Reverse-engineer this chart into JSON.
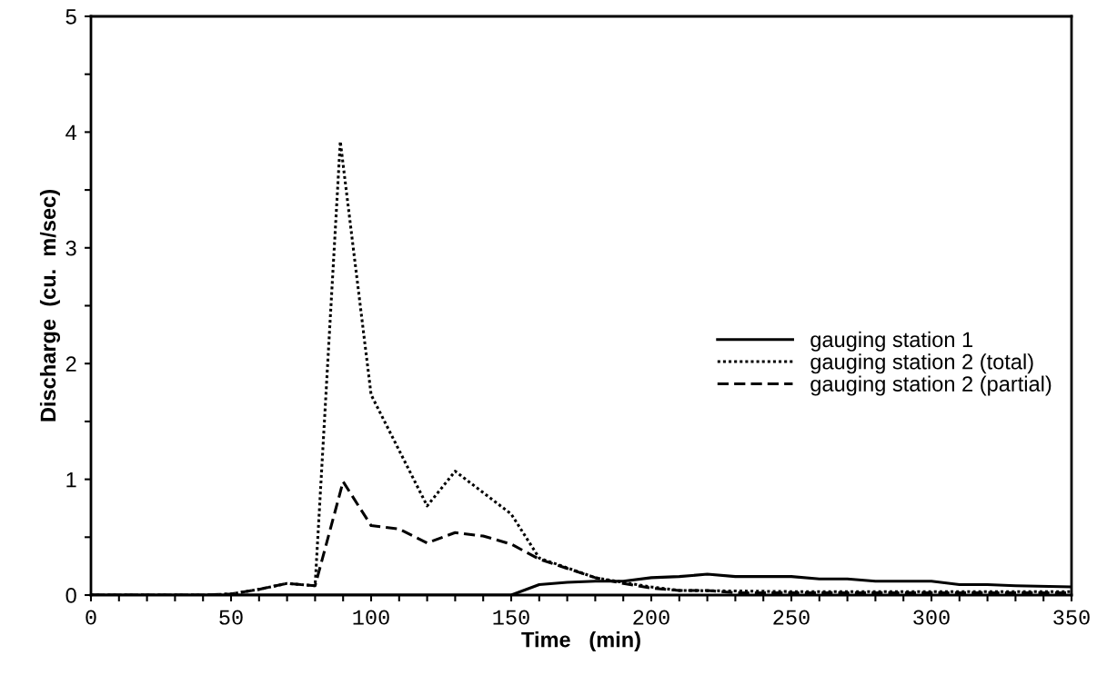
{
  "chart_data": {
    "type": "line",
    "xlabel": "Time   (min)",
    "ylabel": "Discharge  (cu.  m/sec)",
    "xlim": [
      0,
      350
    ],
    "ylim": [
      0,
      5
    ],
    "xticks": [
      0,
      {
        "value": 10,
        "label": null
      },
      {
        "value": 20,
        "label": null
      },
      {
        "value": 30,
        "label": null
      },
      {
        "value": 40,
        "label": null
      },
      50,
      {
        "value": 60,
        "label": null
      },
      {
        "value": 70,
        "label": null
      },
      {
        "value": 80,
        "label": null
      },
      {
        "value": 90,
        "label": null
      },
      100,
      {
        "value": 110,
        "label": null
      },
      {
        "value": 120,
        "label": null
      },
      {
        "value": 130,
        "label": null
      },
      {
        "value": 140,
        "label": null
      },
      150,
      {
        "value": 160,
        "label": null
      },
      {
        "value": 170,
        "label": null
      },
      {
        "value": 180,
        "label": null
      },
      {
        "value": 190,
        "label": null
      },
      200,
      {
        "value": 210,
        "label": null
      },
      {
        "value": 220,
        "label": null
      },
      {
        "value": 230,
        "label": null
      },
      {
        "value": 240,
        "label": null
      },
      250,
      {
        "value": 260,
        "label": null
      },
      {
        "value": 270,
        "label": null
      },
      {
        "value": 280,
        "label": null
      },
      {
        "value": 290,
        "label": null
      },
      300,
      {
        "value": 310,
        "label": null
      },
      {
        "value": 320,
        "label": null
      },
      {
        "value": 330,
        "label": null
      },
      {
        "value": 340,
        "label": null
      },
      350
    ],
    "yticks": [
      0,
      {
        "value": 0.5,
        "label": null
      },
      1,
      {
        "value": 1.5,
        "label": null
      },
      2,
      {
        "value": 2.5,
        "label": null
      },
      3,
      {
        "value": 3.5,
        "label": null
      },
      4,
      {
        "value": 4.5,
        "label": null
      },
      5
    ],
    "grid": false,
    "legend": "right",
    "marker": "none",
    "series": [
      {
        "name": "gauging station 1",
        "color": "#000000",
        "line_style": "solid",
        "x": [
          0,
          150,
          160,
          170,
          180,
          190,
          200,
          210,
          220,
          230,
          250,
          260,
          270,
          280,
          300,
          310,
          320,
          330,
          350
        ],
        "values": [
          0,
          0,
          0.09,
          0.11,
          0.12,
          0.12,
          0.15,
          0.16,
          0.18,
          0.16,
          0.16,
          0.14,
          0.14,
          0.12,
          0.12,
          0.09,
          0.09,
          0.08,
          0.07
        ]
      },
      {
        "name": "gauging station 2 (total)",
        "color": "#000000",
        "line_style": "dotted",
        "x": [
          0,
          40,
          50,
          60,
          70,
          80,
          89,
          100,
          120,
          130,
          150,
          160,
          180,
          200,
          210,
          250,
          300,
          350
        ],
        "values": [
          0,
          0,
          0.01,
          0.05,
          0.1,
          0.08,
          3.92,
          1.73,
          0.77,
          1.07,
          0.7,
          0.32,
          0.15,
          0.07,
          0.04,
          0.03,
          0.03,
          0.03
        ]
      },
      {
        "name": "gauging station 2 (partial)",
        "color": "#000000",
        "line_style": "dashed",
        "x": [
          0,
          40,
          50,
          60,
          70,
          80,
          90,
          100,
          110,
          120,
          130,
          140,
          150,
          160,
          170,
          180,
          190,
          200,
          210,
          220,
          230,
          350
        ],
        "values": [
          0,
          0,
          0.01,
          0.05,
          0.1,
          0.08,
          0.98,
          0.6,
          0.57,
          0.45,
          0.54,
          0.51,
          0.44,
          0.31,
          0.23,
          0.15,
          0.1,
          0.06,
          0.04,
          0.04,
          0.02,
          0.02
        ]
      }
    ]
  }
}
